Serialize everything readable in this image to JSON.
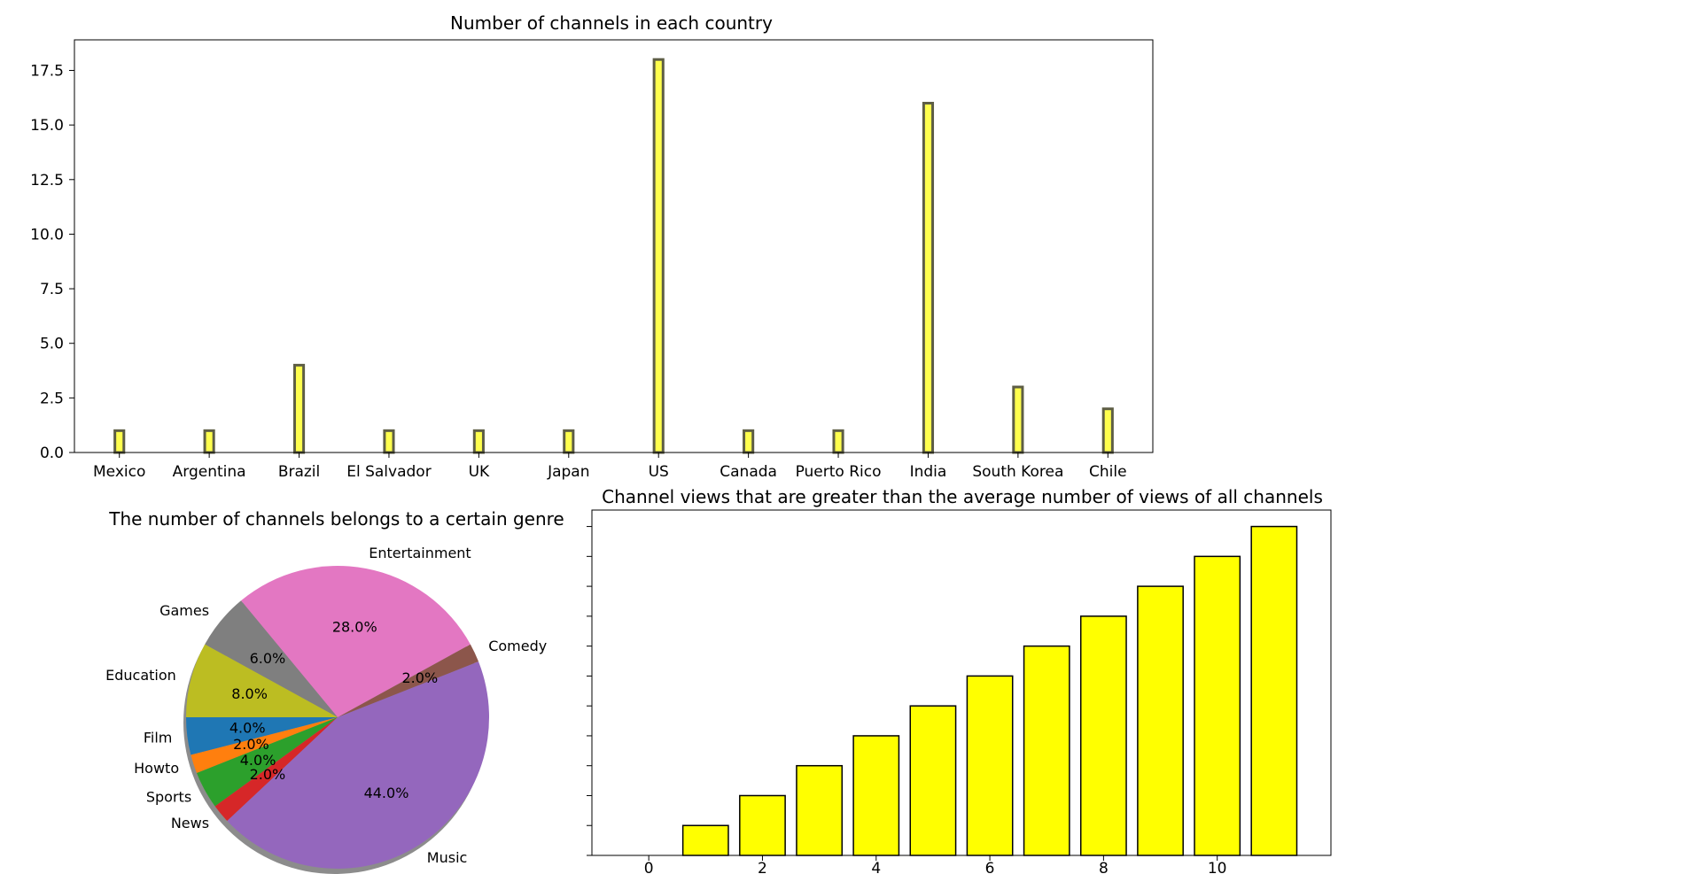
{
  "colors": {
    "bar_fill": "#ffff00",
    "country_bar_fill": "#ffff4d",
    "country_bar_edge": "#5e5e45",
    "bar_edge": "#000000",
    "shadow": "#8c8c8c"
  },
  "chart_data": [
    {
      "type": "bar",
      "title": "Number of channels in each country",
      "xlabel": "",
      "ylabel": "",
      "categories": [
        "Mexico",
        "Argentina",
        "Brazil",
        "El Salvador",
        "UK",
        "Japan",
        "US",
        "Canada",
        "Puerto Rico",
        "India",
        "South Korea",
        "Chile"
      ],
      "values": [
        1,
        1,
        4,
        1,
        1,
        1,
        18,
        1,
        1,
        16,
        3,
        2
      ],
      "ylim": [
        0,
        18.9
      ],
      "yticks": [
        0.0,
        2.5,
        5.0,
        7.5,
        10.0,
        12.5,
        15.0,
        17.5
      ],
      "ytick_labels": [
        "0.0",
        "2.5",
        "5.0",
        "7.5",
        "10.0",
        "12.5",
        "15.0",
        "17.5"
      ],
      "grid": false
    },
    {
      "type": "pie",
      "title": "The number of channels belongs to a certain genre",
      "shadow": true,
      "start_angle_deg": 180,
      "slices": [
        {
          "label": "Film",
          "value": 4.0,
          "pct_label": "4.0%",
          "color": "#1f77b4"
        },
        {
          "label": "Howto",
          "value": 2.0,
          "pct_label": "2.0%",
          "color": "#ff7f0e"
        },
        {
          "label": "Sports",
          "value": 4.0,
          "pct_label": "4.0%",
          "color": "#2ca02c"
        },
        {
          "label": "News",
          "value": 2.0,
          "pct_label": "2.0%",
          "color": "#d62728"
        },
        {
          "label": "Music",
          "value": 44.0,
          "pct_label": "44.0%",
          "color": "#9467bd"
        },
        {
          "label": "Comedy",
          "value": 2.0,
          "pct_label": "2.0%",
          "color": "#8c564b"
        },
        {
          "label": "Entertainment",
          "value": 28.0,
          "pct_label": "28.0%",
          "color": "#e377c2"
        },
        {
          "label": "Games",
          "value": 6.0,
          "pct_label": "6.0%",
          "color": "#7f7f7f"
        },
        {
          "label": "Education",
          "value": 8.0,
          "pct_label": "8.0%",
          "color": "#bcbd22"
        }
      ]
    },
    {
      "type": "bar",
      "title": "Channel views that are greater than the average number of views of all channels",
      "xlabel": "",
      "ylabel": "",
      "x": [
        0,
        1,
        2,
        3,
        4,
        5,
        6,
        7,
        8,
        9,
        10,
        11
      ],
      "values": [
        0,
        1,
        2,
        3,
        4,
        5,
        6,
        7,
        8,
        9,
        10,
        11
      ],
      "xlim": [
        -1.0,
        12.0
      ],
      "ylim": [
        0,
        11.55
      ],
      "xticks": [
        0,
        2,
        4,
        6,
        8,
        10
      ],
      "xtick_labels": [
        "0",
        "2",
        "4",
        "6",
        "8",
        "10"
      ],
      "ytick_count": 12,
      "ytick_labels_visible": false,
      "grid": false
    }
  ]
}
